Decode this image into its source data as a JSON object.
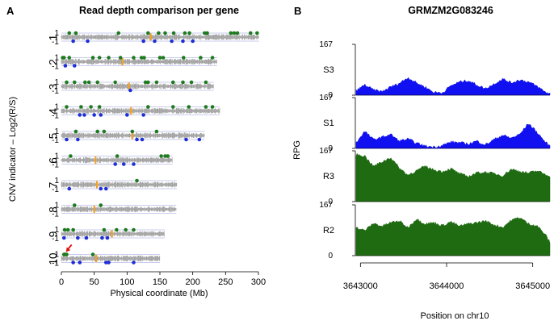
{
  "colors": {
    "points_gain": "#1f7a1f",
    "points_loss": "#1f2fd6",
    "gene_marker": "#f5a020",
    "arrow": "#e01010",
    "guide_line": "#b7bde8",
    "noise": "#9a9a9a",
    "coverage_S": "#1010f0",
    "coverage_R": "#1f6b12"
  },
  "panel_a": {
    "label": "A",
    "title": "Read depth comparison per gene",
    "ylabel": "CNV indicator – Log2(R/S)",
    "xlabel": "Physical coordinate (Mb)",
    "xlim": [
      0,
      300
    ],
    "xticks": [
      "0",
      "50",
      "100",
      "150",
      "200",
      "250",
      "300"
    ],
    "tick_up": "1",
    "tick_down": "-1",
    "chromosomes": [
      {
        "name": "1",
        "length": 301,
        "marker": 136,
        "gain": [
          12,
          22,
          87,
          132,
          148,
          158,
          171,
          188,
          195,
          218,
          222,
          258,
          263,
          268,
          288,
          298
        ],
        "loss": [
          18,
          40,
          125,
          142,
          168,
          185,
          200
        ]
      },
      {
        "name": "2",
        "length": 237,
        "marker": 93,
        "gain": [
          2,
          4,
          12,
          48,
          58,
          72,
          90,
          110,
          122,
          126,
          150,
          155,
          186,
          212,
          230
        ],
        "loss": [
          6,
          20
        ]
      },
      {
        "name": "3",
        "length": 232,
        "marker": 103,
        "gain": [
          8,
          20,
          36,
          42,
          55,
          82,
          128,
          132,
          145,
          170,
          185,
          198,
          220
        ],
        "loss": [
          105
        ]
      },
      {
        "name": "4",
        "length": 241,
        "marker": 106,
        "gain": [
          8,
          30,
          45,
          58,
          132,
          170,
          194,
          220,
          230
        ],
        "loss": [
          28,
          35,
          50,
          60,
          100,
          125
        ]
      },
      {
        "name": "5",
        "length": 218,
        "marker": 108,
        "gain": [
          22,
          55,
          65,
          108,
          145
        ],
        "loss": [
          8,
          25,
          115,
          123,
          190,
          210
        ]
      },
      {
        "name": "6",
        "length": 169,
        "marker": 52,
        "gain": [
          14,
          85,
          152,
          158,
          162
        ],
        "loss": [
          82,
          95,
          110
        ]
      },
      {
        "name": "7",
        "length": 176,
        "marker": 54,
        "gain": [
          115
        ],
        "loss": [
          12,
          60,
          68
        ]
      },
      {
        "name": "8",
        "length": 175,
        "marker": 50,
        "gain": [
          20,
          60
        ],
        "loss": []
      },
      {
        "name": "9",
        "length": 157,
        "marker": 77,
        "gain": [
          5,
          10,
          18,
          65,
          84,
          98,
          110
        ],
        "loss": [
          4,
          25,
          38,
          62,
          70
        ]
      },
      {
        "name": "10",
        "length": 150,
        "marker": 53,
        "gain": [
          4,
          5,
          6,
          8,
          48
        ],
        "loss": [
          18,
          28,
          68,
          72,
          110
        ]
      }
    ],
    "arrow_chrom": "10",
    "arrow_x": 7
  },
  "panel_b": {
    "label": "B",
    "title": "GRMZM2G083246",
    "ylabel": "RPG",
    "xlabel": "Position on chr10",
    "xlim": [
      3642950,
      3645200
    ],
    "xticks": [
      3643000,
      3644000,
      3645000
    ],
    "xtick_labels": [
      "3643000",
      "3644000",
      "3645000"
    ],
    "ylim": [
      0,
      167
    ],
    "ytick_top": "167",
    "ytick_bottom": "0",
    "tracks": [
      {
        "name": "S3",
        "x": [
          3642950,
          3643050,
          3643150,
          3643250,
          3643350,
          3643450,
          3643550,
          3643650,
          3643750,
          3643850,
          3643950,
          3644050,
          3644150,
          3644250,
          3644350,
          3644450,
          3644550,
          3644650,
          3644750,
          3644850,
          3644950,
          3645050,
          3645150,
          3645200
        ],
        "y": [
          15,
          35,
          18,
          12,
          28,
          40,
          60,
          42,
          28,
          10,
          8,
          32,
          45,
          50,
          35,
          22,
          38,
          55,
          42,
          52,
          45,
          30,
          10,
          5
        ]
      },
      {
        "name": "S1",
        "x": [
          3642950,
          3643050,
          3643150,
          3643250,
          3643350,
          3643450,
          3643550,
          3643650,
          3643750,
          3643850,
          3643950,
          3644050,
          3644150,
          3644250,
          3644350,
          3644450,
          3644550,
          3644650,
          3644750,
          3644850,
          3644950,
          3645050,
          3645150,
          3645200
        ],
        "y": [
          20,
          58,
          30,
          38,
          48,
          25,
          32,
          18,
          8,
          5,
          10,
          22,
          20,
          15,
          25,
          12,
          30,
          45,
          35,
          48,
          85,
          55,
          20,
          8
        ]
      },
      {
        "name": "R3",
        "x": [
          3642950,
          3643050,
          3643150,
          3643250,
          3643350,
          3643450,
          3643550,
          3643650,
          3643750,
          3643850,
          3643950,
          3644050,
          3644150,
          3644250,
          3644350,
          3644450,
          3644550,
          3644650,
          3644750,
          3644850,
          3644950,
          3645050,
          3645150,
          3645200
        ],
        "y": [
          160,
          155,
          120,
          135,
          150,
          115,
          90,
          105,
          120,
          108,
          102,
          112,
          95,
          85,
          98,
          100,
          95,
          88,
          110,
          103,
          97,
          105,
          92,
          88
        ]
      },
      {
        "name": "R2",
        "x": [
          3642950,
          3643050,
          3643150,
          3643250,
          3643350,
          3643450,
          3643550,
          3643650,
          3643750,
          3643850,
          3643950,
          3644050,
          3644150,
          3644250,
          3644350,
          3644450,
          3644550,
          3644650,
          3644750,
          3644850,
          3644950,
          3645050,
          3645150,
          3645200
        ],
        "y": [
          95,
          85,
          110,
          100,
          112,
          118,
          95,
          125,
          108,
          112,
          102,
          115,
          100,
          108,
          112,
          118,
          105,
          96,
          120,
          130,
          108,
          102,
          70,
          45
        ]
      }
    ]
  }
}
